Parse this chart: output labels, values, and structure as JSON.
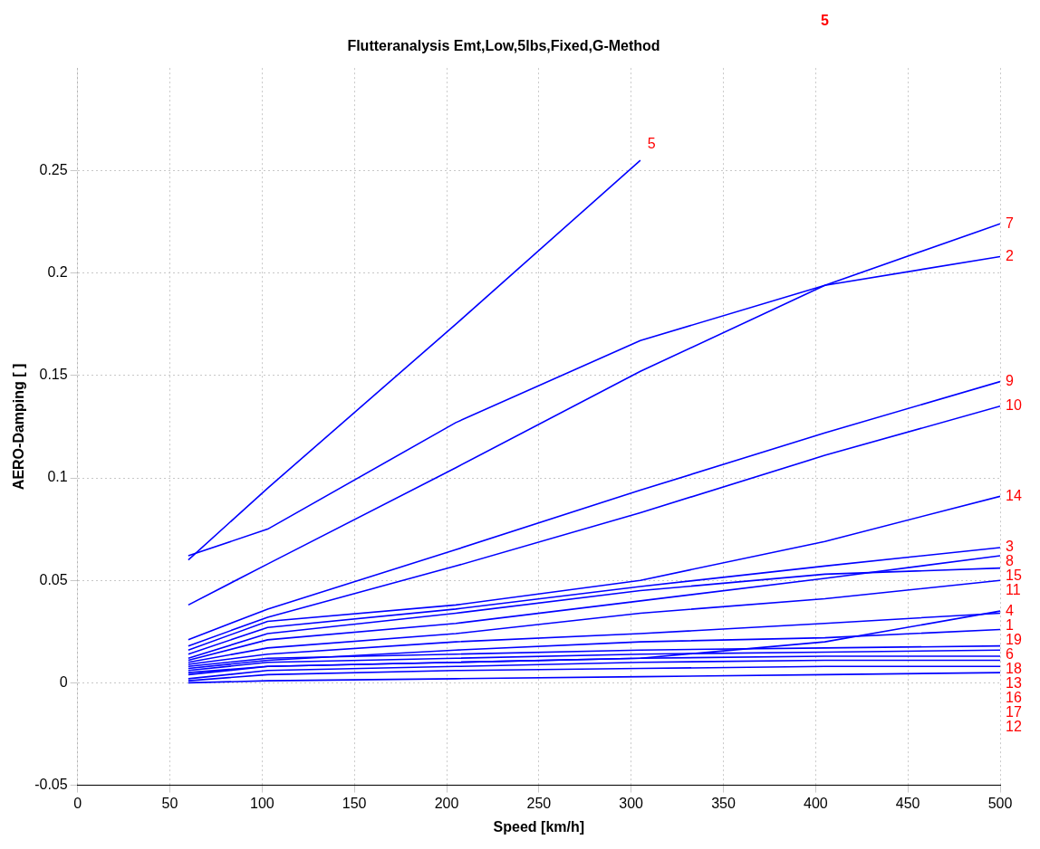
{
  "chart_data": {
    "type": "line",
    "title": "Flutteranalysis Emt,Low,5lbs,Fixed,G-Method",
    "xlabel": "Speed [km/h]",
    "ylabel": "AERO-Damping [ ]",
    "x": [
      60,
      103,
      205,
      305,
      405,
      500
    ],
    "xlim": [
      0,
      500
    ],
    "xticks": [
      0,
      50,
      100,
      150,
      200,
      250,
      300,
      350,
      400,
      450,
      500
    ],
    "ylim": [
      -0.05,
      0.3
    ],
    "yticks": [
      -0.05,
      0,
      0.05,
      0.1,
      0.15,
      0.2,
      0.25
    ],
    "grid": true,
    "legend": false,
    "marker": "none",
    "line_style": "solid",
    "annotations": [
      "5"
    ],
    "series": [
      {
        "name": "5",
        "color": "#0000ff",
        "x": [
          60,
          103,
          205,
          305
        ],
        "values": [
          0.06,
          0.095,
          0.175,
          0.255
        ]
      },
      {
        "name": "2",
        "color": "#0000ff",
        "x": [
          60,
          103,
          205,
          305,
          405,
          500
        ],
        "values": [
          0.062,
          0.075,
          0.127,
          0.167,
          0.194,
          0.208
        ]
      },
      {
        "name": "7",
        "color": "#0000ff",
        "values": [
          0.038,
          0.058,
          0.105,
          0.152,
          0.194,
          0.224
        ]
      },
      {
        "name": "9",
        "color": "#0000ff",
        "values": [
          0.021,
          0.036,
          0.065,
          0.094,
          0.122,
          0.147
        ]
      },
      {
        "name": "10",
        "color": "#0000ff",
        "values": [
          0.018,
          0.032,
          0.057,
          0.083,
          0.111,
          0.135
        ]
      },
      {
        "name": "14",
        "color": "#0000ff",
        "values": [
          0.016,
          0.03,
          0.038,
          0.05,
          0.069,
          0.091
        ]
      },
      {
        "name": "3",
        "color": "#0000ff",
        "values": [
          0.014,
          0.027,
          0.036,
          0.047,
          0.057,
          0.066
        ]
      },
      {
        "name": "15",
        "color": "#0000ff",
        "values": [
          0.012,
          0.024,
          0.034,
          0.045,
          0.053,
          0.056
        ]
      },
      {
        "name": "8",
        "color": "#0000ff",
        "values": [
          0.011,
          0.021,
          0.029,
          0.04,
          0.051,
          0.062
        ]
      },
      {
        "name": "11",
        "color": "#0000ff",
        "values": [
          0.01,
          0.017,
          0.024,
          0.034,
          0.041,
          0.05
        ]
      },
      {
        "name": "1",
        "color": "#0000ff",
        "values": [
          0.009,
          0.014,
          0.02,
          0.024,
          0.029,
          0.034
        ]
      },
      {
        "name": "4",
        "color": "#0000ff",
        "values": [
          0.005,
          0.008,
          0.01,
          0.012,
          0.02,
          0.035
        ]
      },
      {
        "name": "19",
        "color": "#0000ff",
        "values": [
          0.007,
          0.011,
          0.016,
          0.02,
          0.022,
          0.026
        ]
      },
      {
        "name": "6",
        "color": "#0000ff",
        "values": [
          0.008,
          0.012,
          0.014,
          0.016,
          0.017,
          0.018
        ]
      },
      {
        "name": "18",
        "color": "#0000ff",
        "values": [
          0.006,
          0.01,
          0.012,
          0.014,
          0.015,
          0.016
        ]
      },
      {
        "name": "13",
        "color": "#0000ff",
        "values": [
          0.004,
          0.008,
          0.01,
          0.012,
          0.013,
          0.013
        ]
      },
      {
        "name": "16",
        "color": "#0000ff",
        "values": [
          0.002,
          0.006,
          0.008,
          0.01,
          0.011,
          0.011
        ]
      },
      {
        "name": "17",
        "color": "#0000ff",
        "values": [
          0.001,
          0.004,
          0.006,
          0.007,
          0.008,
          0.008
        ]
      },
      {
        "name": "12",
        "color": "#0000ff",
        "values": [
          0,
          0.001,
          0.002,
          0.003,
          0.004,
          0.005
        ]
      }
    ]
  }
}
